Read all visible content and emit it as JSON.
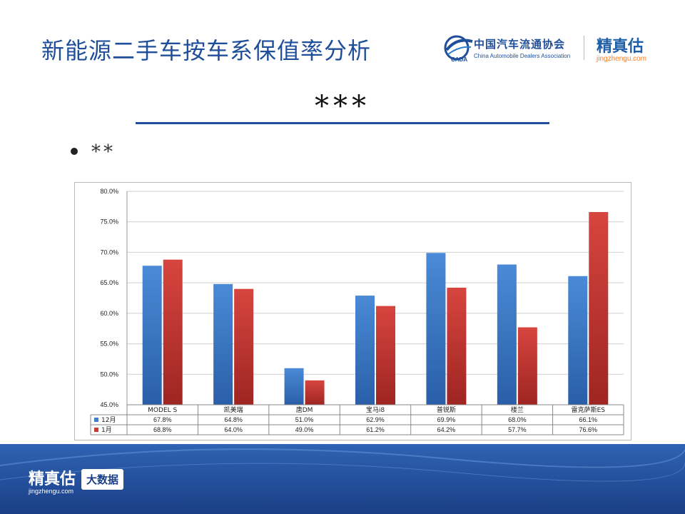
{
  "page_title": "新能源二手车按车系保值率分析",
  "logos": {
    "cada_cn": "中国汽车流通协会",
    "cada_en": "China Automobile Dealers Association",
    "cada_mark": "CADA",
    "jzg_cn": "精真估",
    "jzg_url": "jingzhengu.com"
  },
  "heading": "***",
  "bullet": "**",
  "footer": {
    "jzg_cn": "精真估",
    "jzg_url": "jingzhengu.com",
    "badge": "大数据"
  },
  "colors": {
    "title": "#1f4e9a",
    "series_dec": "#3f7fcb",
    "series_jan": "#c93a37"
  },
  "chart_data": {
    "type": "bar",
    "categories": [
      "MODEL S",
      "凯美瑞",
      "唐DM",
      "宝马i8",
      "普锐斯",
      "楼兰",
      "雷克萨斯ES"
    ],
    "series": [
      {
        "name": "12月",
        "values": [
          67.8,
          64.8,
          51.0,
          62.9,
          69.9,
          68.0,
          66.1
        ],
        "labels": [
          "67.8%",
          "64.8%",
          "51.0%",
          "62.9%",
          "69.9%",
          "68.0%",
          "66.1%"
        ],
        "color": "#3f7fcb"
      },
      {
        "name": "1月",
        "values": [
          68.8,
          64.0,
          49.0,
          61.2,
          64.2,
          57.7,
          76.6
        ],
        "labels": [
          "68.8%",
          "64.0%",
          "49.0%",
          "61.2%",
          "64.2%",
          "57.7%",
          "76.6%"
        ],
        "color": "#c93a37"
      }
    ],
    "yticks": [
      "80.0%",
      "75.0%",
      "70.0%",
      "65.0%",
      "60.0%",
      "55.0%",
      "50.0%",
      "45.0%"
    ],
    "ylim": [
      45,
      80
    ],
    "grid": true,
    "legend": "data table below chart"
  }
}
